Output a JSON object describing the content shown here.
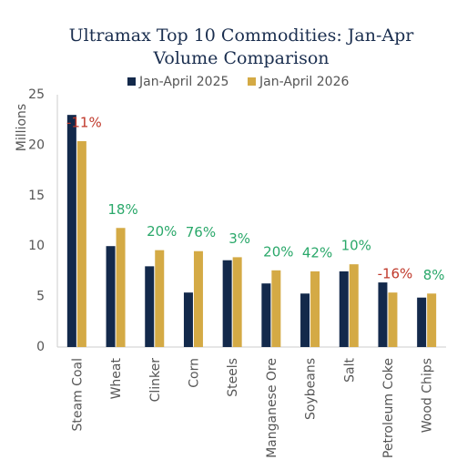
{
  "chart_data": {
    "type": "bar",
    "title": "Ultramax Top 10 Commodities: Jan-Apr",
    "subtitle": "Volume Comparison",
    "y_label": "Millions",
    "categories": [
      "Steam Coal",
      "Wheat",
      "Clinker",
      "Corn",
      "Steels",
      "Manganese Ore",
      "Soybeans",
      "Salt",
      "Petroleum Coke",
      "Wood Chips"
    ],
    "series": [
      {
        "name": "Jan-April 2025",
        "color": "#13294b",
        "values": [
          23.0,
          10.0,
          8.0,
          5.4,
          8.6,
          6.3,
          5.3,
          7.5,
          6.4,
          4.9
        ]
      },
      {
        "name": "Jan-April 2026",
        "color": "#d4aa45",
        "values": [
          20.4,
          11.8,
          9.6,
          9.5,
          8.9,
          7.6,
          7.5,
          8.2,
          5.4,
          5.3
        ]
      }
    ],
    "changes": [
      {
        "value": -11,
        "label": "-11%"
      },
      {
        "value": 18,
        "label": "18%"
      },
      {
        "value": 20,
        "label": "20%"
      },
      {
        "value": 76,
        "label": "76%"
      },
      {
        "value": 3,
        "label": "3%"
      },
      {
        "value": 20,
        "label": "20%"
      },
      {
        "value": 42,
        "label": "42%"
      },
      {
        "value": 10,
        "label": "10%"
      },
      {
        "value": -16,
        "label": "-16%"
      },
      {
        "value": 8,
        "label": "8%"
      }
    ],
    "positive_color": "#2aa86a",
    "negative_color": "#c0392b",
    "ylim": [
      0,
      25
    ],
    "yticks": [
      0,
      5,
      10,
      15,
      20,
      25
    ],
    "grid": false
  }
}
